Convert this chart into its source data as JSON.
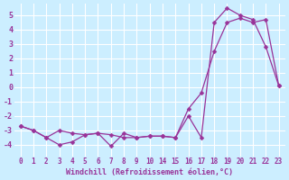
{
  "xlabel": "Windchill (Refroidissement éolien,°C)",
  "bg_color": "#cceeff",
  "line_color": "#993399",
  "grid_color": "#ffffff",
  "tick_labels": [
    "0",
    "1",
    "2",
    "3",
    "4",
    "5",
    "6",
    "7",
    "8",
    "9",
    "10",
    "14",
    "15",
    "16",
    "17",
    "18",
    "19",
    "20",
    "21",
    "22",
    "23"
  ],
  "yticks": [
    -4,
    -3,
    -2,
    -1,
    0,
    1,
    2,
    3,
    4,
    5
  ],
  "ylim": [
    -4.8,
    5.8
  ],
  "line1_y": [
    -2.7,
    -3.0,
    -3.5,
    -4.0,
    -3.8,
    -3.3,
    -3.2,
    -4.1,
    -3.2,
    -3.5,
    -3.4,
    -3.4,
    -3.5,
    -2.0,
    -3.5,
    4.5,
    5.5,
    5.0,
    4.7,
    2.8,
    0.1
  ],
  "line2_y": [
    -2.7,
    -3.0,
    -3.5,
    -3.0,
    -3.2,
    -3.3,
    -3.2,
    -3.3,
    -3.5,
    -3.5,
    -3.4,
    -3.4,
    -3.5,
    -1.5,
    -0.4,
    2.5,
    4.5,
    4.8,
    4.5,
    4.7,
    0.1
  ],
  "marker": "D",
  "markersize": 2.5,
  "linewidth": 0.9,
  "xlabel_fontsize": 6,
  "tick_fontsize": 5.5,
  "ytick_fontsize": 6
}
